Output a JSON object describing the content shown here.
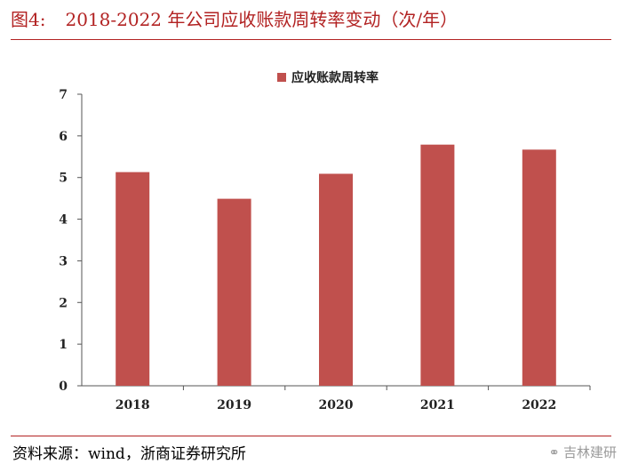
{
  "header": {
    "figure_label": "图4:",
    "title": "2018-2022 年公司应收账款周转率变动（次/年）"
  },
  "footer": {
    "source": "资料来源：wind，浙商证券研究所",
    "watermark": "吉林建研"
  },
  "colors": {
    "bar": "#c0504d",
    "axis": "#555555",
    "title": "#b22222"
  },
  "chart_data": {
    "type": "bar",
    "categories": [
      "2018",
      "2019",
      "2020",
      "2021",
      "2022"
    ],
    "series": [
      {
        "name": "应收账款周转率",
        "values": [
          5.13,
          4.49,
          5.09,
          5.79,
          5.67
        ]
      }
    ],
    "yticks": [
      0,
      1,
      2,
      3,
      4,
      5,
      6,
      7
    ],
    "ylim": [
      0,
      7
    ],
    "grid": false,
    "legend": "top-center"
  }
}
